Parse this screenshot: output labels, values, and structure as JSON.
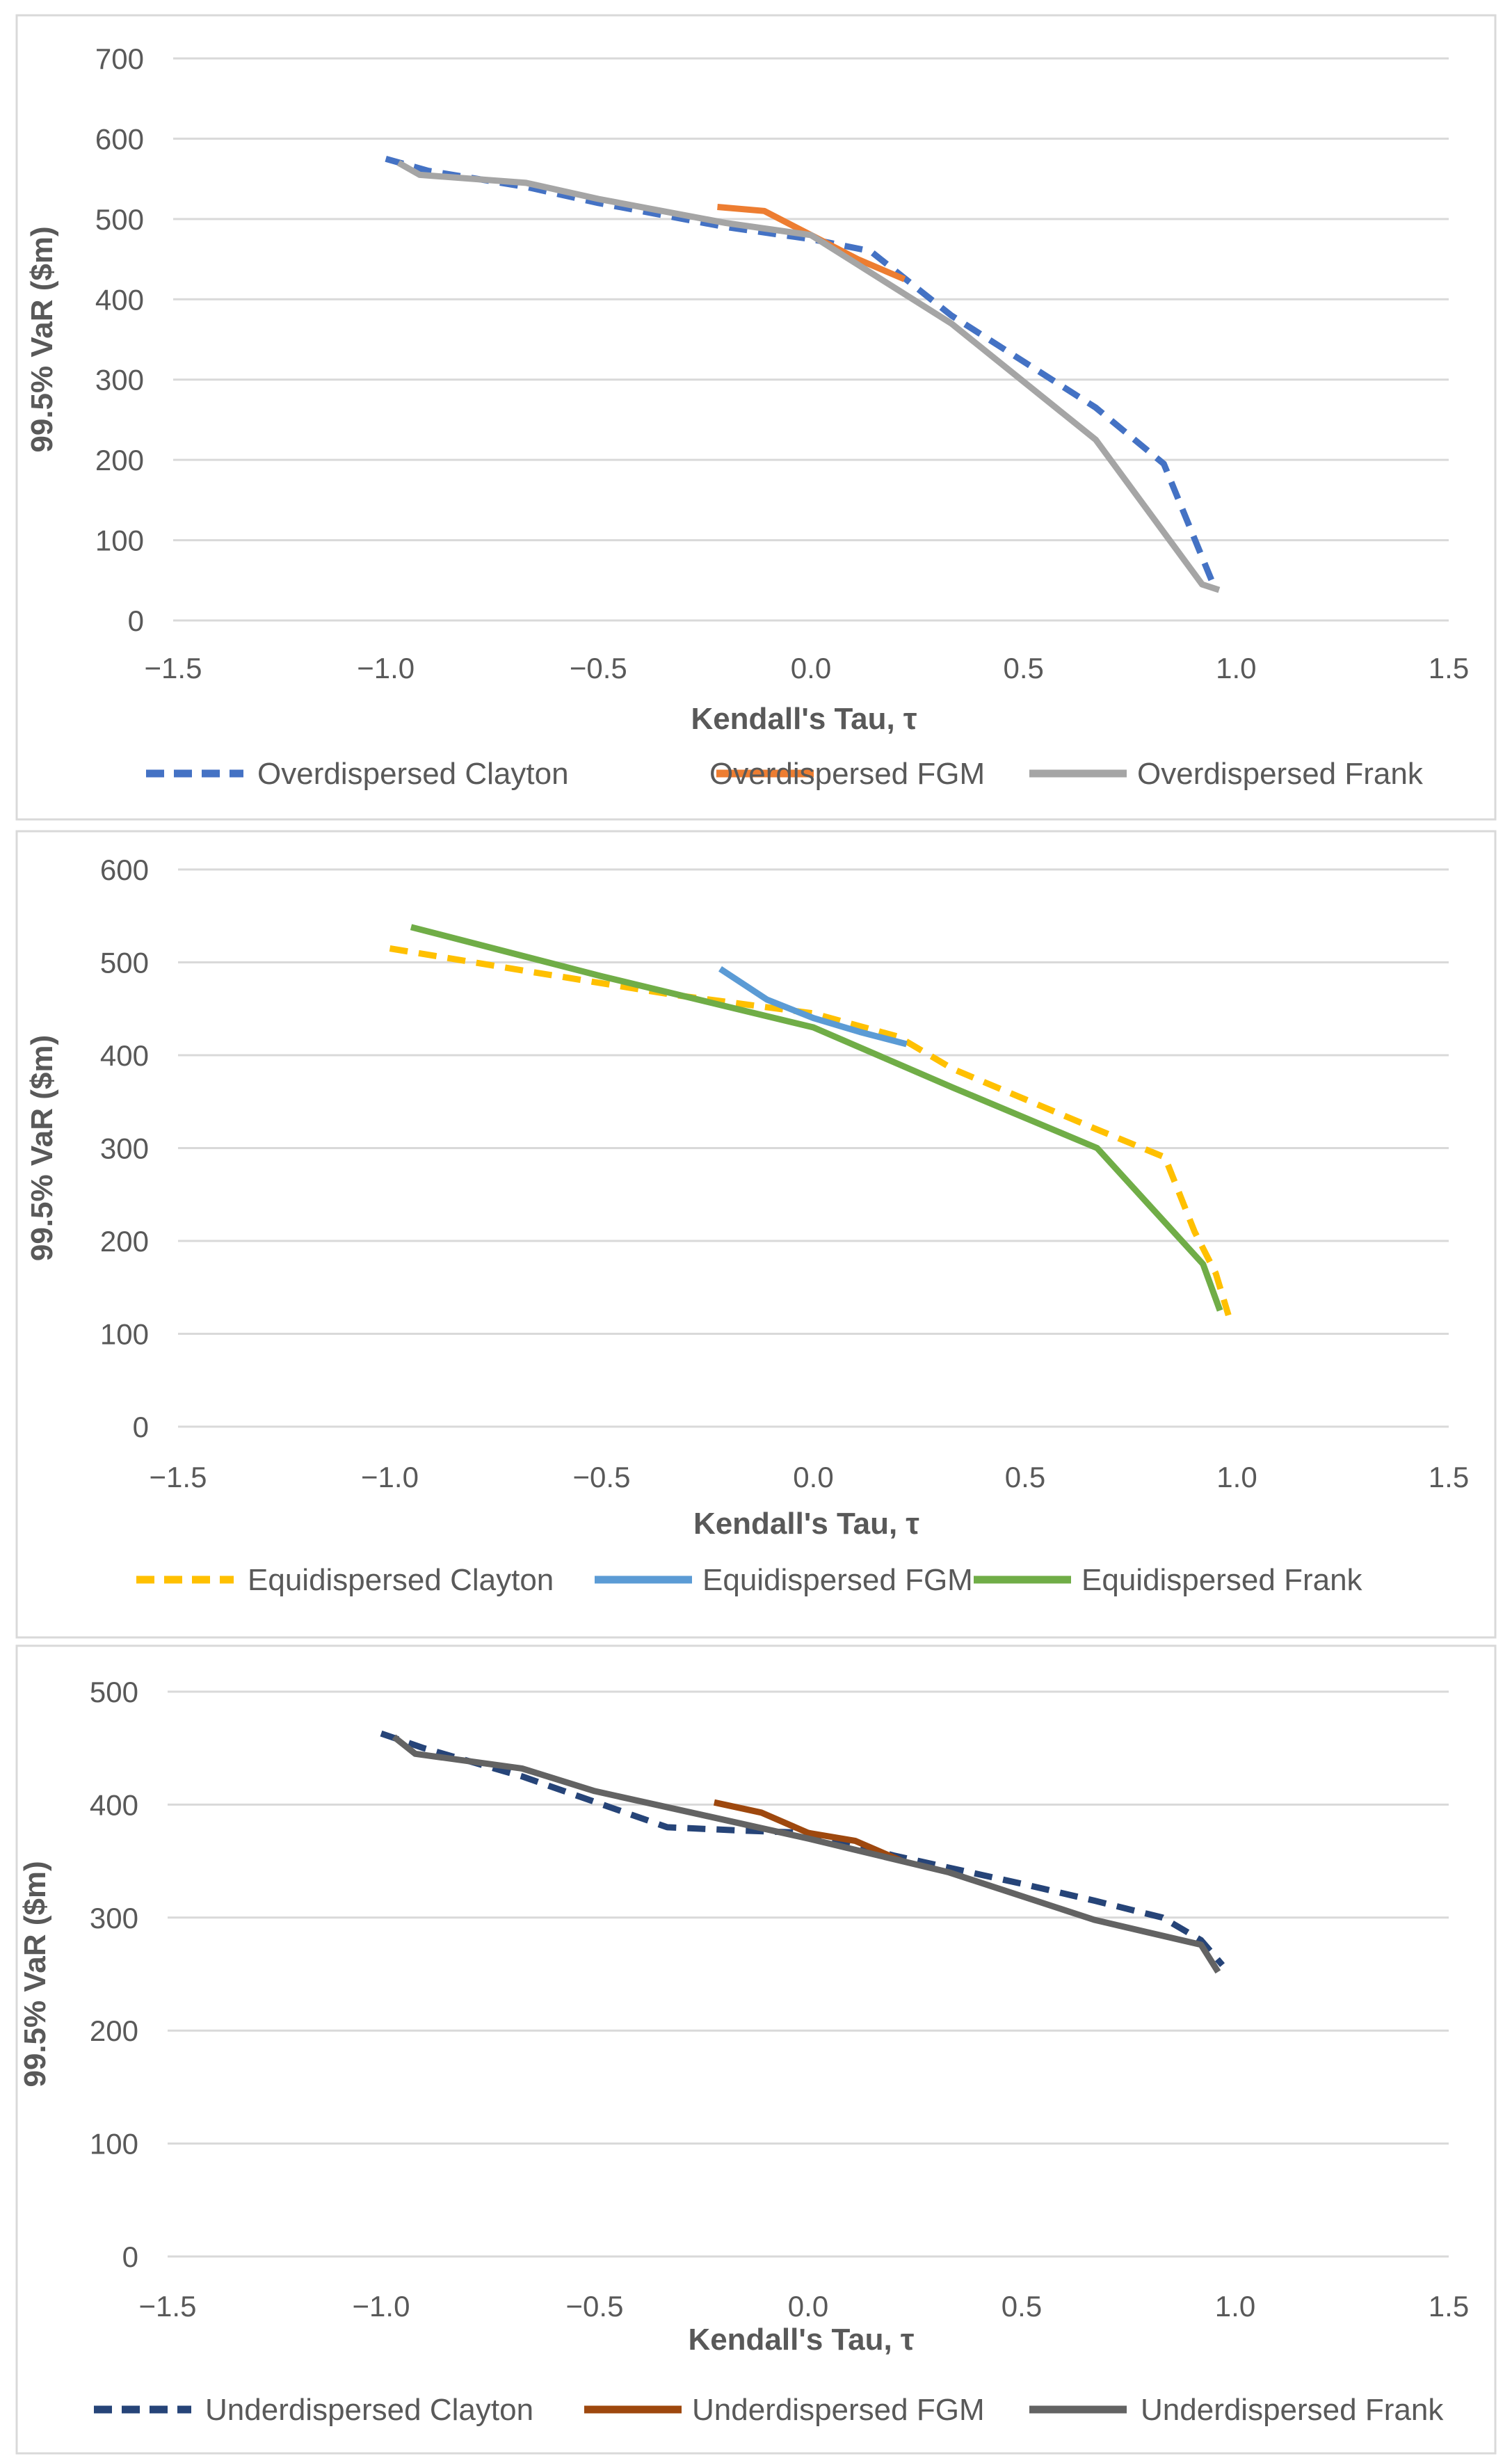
{
  "chart_data": [
    {
      "type": "line",
      "title": "",
      "xlabel": "Kendall's Tau, τ",
      "ylabel": "99.5% VaR ($m)",
      "xlim": [
        -1.5,
        1.5
      ],
      "ylim": [
        0,
        700
      ],
      "xticks": [
        "−1.5",
        "−1.0",
        "−0.5",
        "0.0",
        "0.5",
        "1.0",
        "1.5"
      ],
      "yticks": [
        "0",
        "100",
        "200",
        "300",
        "400",
        "500",
        "600",
        "700"
      ],
      "grid": true,
      "legend": "bottom",
      "series": [
        {
          "name": "Overdispersed Clayton",
          "color": "#4472C4",
          "dashed": true,
          "x": [
            -1,
            -0.9,
            -0.67,
            -0.5,
            -0.2,
            0,
            0.14,
            0.33,
            0.67,
            0.83,
            0.95
          ],
          "y": [
            575,
            560,
            540,
            520,
            490,
            475,
            460,
            380,
            265,
            195,
            40
          ]
        },
        {
          "name": "Overdispersed FGM",
          "color": "#ED7D31",
          "dashed": false,
          "x": [
            -0.22,
            -0.11,
            0,
            0.11,
            0.22
          ],
          "y": [
            515,
            510,
            480,
            450,
            425
          ]
        },
        {
          "name": "Overdispersed Frank",
          "color": "#A5A5A5",
          "dashed": false,
          "x": [
            -0.97,
            -0.92,
            -0.67,
            -0.5,
            -0.2,
            0,
            0.33,
            0.67,
            0.92,
            0.96
          ],
          "y": [
            570,
            555,
            545,
            525,
            495,
            480,
            370,
            225,
            45,
            38
          ]
        }
      ]
    },
    {
      "type": "line",
      "title": "",
      "xlabel": "Kendall's Tau, τ",
      "ylabel": "99.5% VaR ($m)",
      "xlim": [
        -1.5,
        1.5
      ],
      "ylim": [
        0,
        600
      ],
      "xticks": [
        "−1.5",
        "−1.0",
        "−0.5",
        "0.0",
        "0.5",
        "1.0",
        "1.5"
      ],
      "yticks": [
        "0",
        "100",
        "200",
        "300",
        "400",
        "500",
        "600"
      ],
      "grid": true,
      "legend": "bottom",
      "series": [
        {
          "name": "Equidispersed Clayton",
          "color": "#FFC000",
          "dashed": true,
          "x": [
            -1,
            -0.67,
            -0.33,
            0,
            0.2,
            0.33,
            0.67,
            0.83,
            0.9,
            0.95,
            0.98
          ],
          "y": [
            515,
            490,
            465,
            445,
            420,
            385,
            320,
            290,
            210,
            165,
            120
          ]
        },
        {
          "name": "Equidispersed FGM",
          "color": "#5B9BD5",
          "dashed": false,
          "x": [
            -0.22,
            -0.11,
            0,
            0.11,
            0.22
          ],
          "y": [
            493,
            460,
            440,
            425,
            412
          ]
        },
        {
          "name": "Equidispersed Frank",
          "color": "#70AD47",
          "dashed": false,
          "x": [
            -0.95,
            -0.5,
            0,
            0.33,
            0.67,
            0.92,
            0.96
          ],
          "y": [
            538,
            485,
            430,
            365,
            300,
            175,
            125
          ]
        }
      ]
    },
    {
      "type": "line",
      "title": "",
      "xlabel": "Kendall's Tau, τ",
      "ylabel": "99.5% VaR ($m)",
      "xlim": [
        -1.5,
        1.5
      ],
      "ylim": [
        0,
        500
      ],
      "xticks": [
        "−1.5",
        "−1.0",
        "−0.5",
        "0.0",
        "0.5",
        "1.0",
        "1.5"
      ],
      "yticks": [
        "0",
        "100",
        "200",
        "300",
        "400",
        "500"
      ],
      "grid": true,
      "legend": "bottom",
      "series": [
        {
          "name": "Underdispersed Clayton",
          "color": "#264478",
          "dashed": true,
          "x": [
            -1,
            -0.9,
            -0.67,
            -0.33,
            -0.15,
            0,
            0.2,
            0.5,
            0.67,
            0.83,
            0.92,
            0.97
          ],
          "y": [
            463,
            450,
            425,
            380,
            377,
            375,
            355,
            330,
            315,
            300,
            280,
            258
          ]
        },
        {
          "name": "Underdispersed FGM",
          "color": "#9E480E",
          "dashed": false,
          "x": [
            -0.22,
            -0.11,
            0,
            0.11,
            0.22
          ],
          "y": [
            402,
            393,
            375,
            368,
            350
          ]
        },
        {
          "name": "Underdispersed Frank",
          "color": "#636363",
          "dashed": false,
          "x": [
            -0.97,
            -0.92,
            -0.67,
            -0.5,
            0,
            0.33,
            0.67,
            0.92,
            0.96
          ],
          "y": [
            460,
            445,
            432,
            412,
            370,
            340,
            298,
            276,
            252
          ]
        }
      ]
    }
  ]
}
